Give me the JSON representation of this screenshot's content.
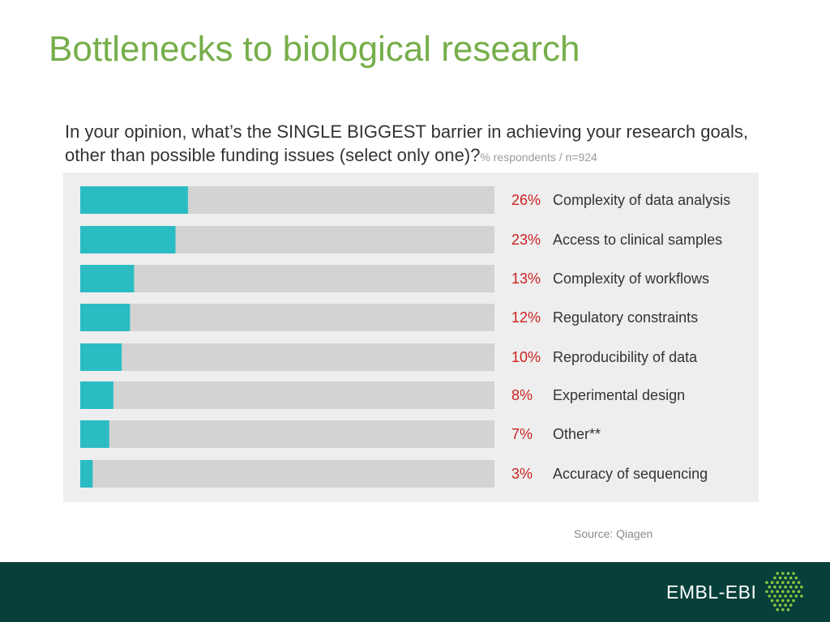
{
  "slide": {
    "title": "Bottlenecks to biological research",
    "source": "Source: Qiagen",
    "brand": "EMBL-EBI"
  },
  "question": {
    "text": "In your opinion, what’s the SINGLE BIGGEST barrier in achieving your research goals, other than possible funding issues (select only one)?",
    "note": "% respondents / n=924"
  },
  "colors": {
    "title": "#76ae4a",
    "bar_fill": "#2bbcc3",
    "bar_track": "#d3d3d3",
    "percent_label": "#cc2222",
    "category_label": "#333333",
    "footer_bg": "#07403a",
    "logo_dots": "#8cc63f"
  },
  "chart_data": {
    "type": "bar",
    "orientation": "horizontal",
    "categories": [
      "Complexity of data analysis",
      "Access to clinical samples",
      "Complexity of workflows",
      "Regulatory constraints",
      "Reproducibility of data",
      "Experimental design",
      "Other**",
      "Accuracy of sequencing"
    ],
    "values": [
      26,
      23,
      13,
      12,
      10,
      8,
      7,
      3
    ],
    "value_labels": [
      "26%",
      "23%",
      "13%",
      "12%",
      "10%",
      "8%",
      "7%",
      "3%"
    ],
    "xlim": [
      0,
      100
    ],
    "grid": false,
    "legend": false
  }
}
